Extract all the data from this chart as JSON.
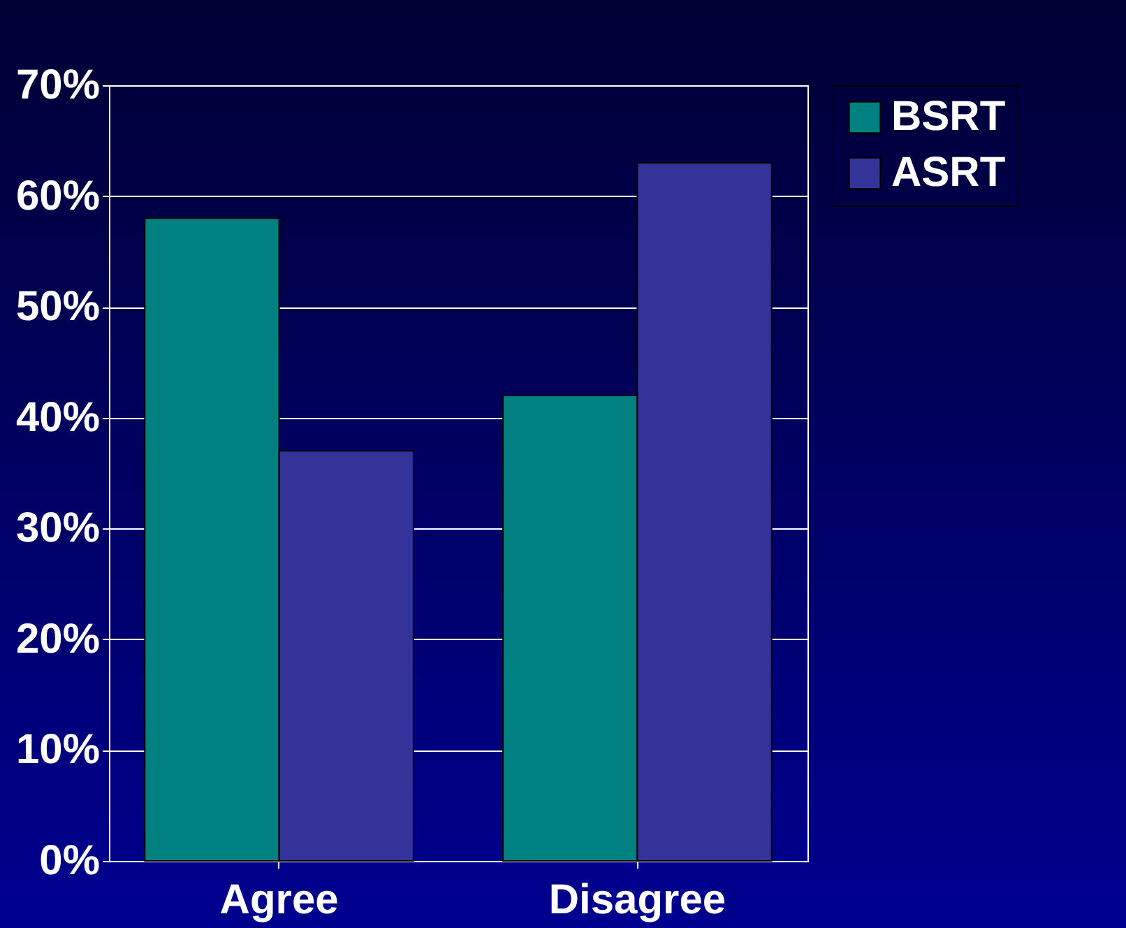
{
  "chart_data": {
    "type": "bar",
    "categories": [
      "Agree",
      "Disagree"
    ],
    "series": [
      {
        "name": "BSRT",
        "color": "#008080",
        "values": [
          58,
          42
        ]
      },
      {
        "name": "ASRT",
        "color": "#333399",
        "values": [
          37,
          63
        ]
      }
    ],
    "ylim": [
      0,
      70
    ],
    "yticks": [
      {
        "value": 0,
        "label": "0%"
      },
      {
        "value": 10,
        "label": "10%"
      },
      {
        "value": 20,
        "label": "20%"
      },
      {
        "value": 30,
        "label": "30%"
      },
      {
        "value": 40,
        "label": "40%"
      },
      {
        "value": 50,
        "label": "50%"
      },
      {
        "value": 60,
        "label": "60%"
      },
      {
        "value": 70,
        "label": "70%"
      }
    ],
    "grid": "y",
    "legend": "right"
  }
}
